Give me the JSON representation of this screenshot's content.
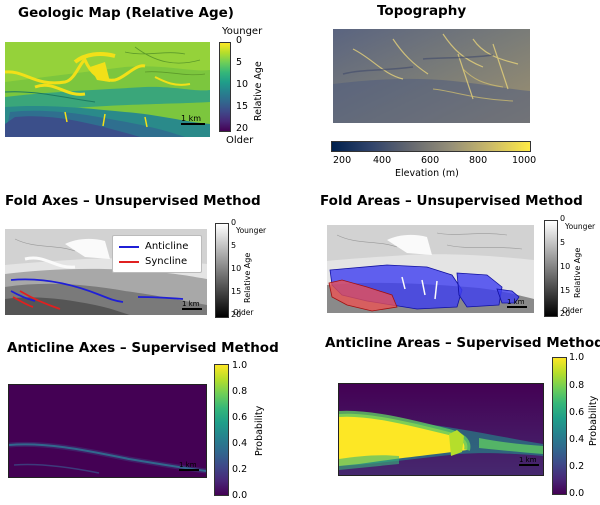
{
  "panels": {
    "geologic": {
      "title": "Geologic Map (Relative Age)",
      "colorbar": {
        "top_label": "Younger",
        "bottom_label": "Older",
        "ticks": [
          "0",
          "5",
          "10",
          "15",
          "20"
        ],
        "axis_label": "Relative Age"
      },
      "scale": "1 km"
    },
    "topography": {
      "title": "Topography",
      "colorbar": {
        "ticks": [
          "200",
          "400",
          "600",
          "800",
          "1000"
        ],
        "axis_label": "Elevation (m)"
      }
    },
    "fold_axes": {
      "title": "Fold Axes – Unsupervised Method",
      "legend": [
        "Anticline",
        "Syncline"
      ],
      "colorbar": {
        "top_label": "Younger",
        "bottom_label": "Older",
        "ticks": [
          "0",
          "5",
          "10",
          "15",
          "20"
        ],
        "axis_label": "Relative Age"
      },
      "scale": "1 km"
    },
    "fold_areas": {
      "title": "Fold Areas – Unsupervised Method",
      "colorbar": {
        "top_label": "Younger",
        "bottom_label": "Older",
        "ticks": [
          "0",
          "5",
          "10",
          "15",
          "20"
        ],
        "axis_label": "Relative Age"
      },
      "scale": "1 km"
    },
    "anticline_axes": {
      "title": "Anticline Axes – Supervised Method",
      "colorbar": {
        "ticks": [
          "1.0",
          "0.8",
          "0.6",
          "0.4",
          "0.2",
          "0.0"
        ],
        "axis_label": "Probability"
      },
      "scale": "1 km"
    },
    "anticline_areas": {
      "title": "Anticline Areas – Supervised Method",
      "colorbar": {
        "ticks": [
          "1.0",
          "0.8",
          "0.6",
          "0.4",
          "0.2",
          "0.0"
        ],
        "axis_label": "Probability"
      },
      "scale": "1 km"
    }
  },
  "colors": {
    "anticline": "#1f1fd6",
    "syncline": "#e02020",
    "viridis_dark": "#440154",
    "viridis_yellow": "#fde725"
  }
}
